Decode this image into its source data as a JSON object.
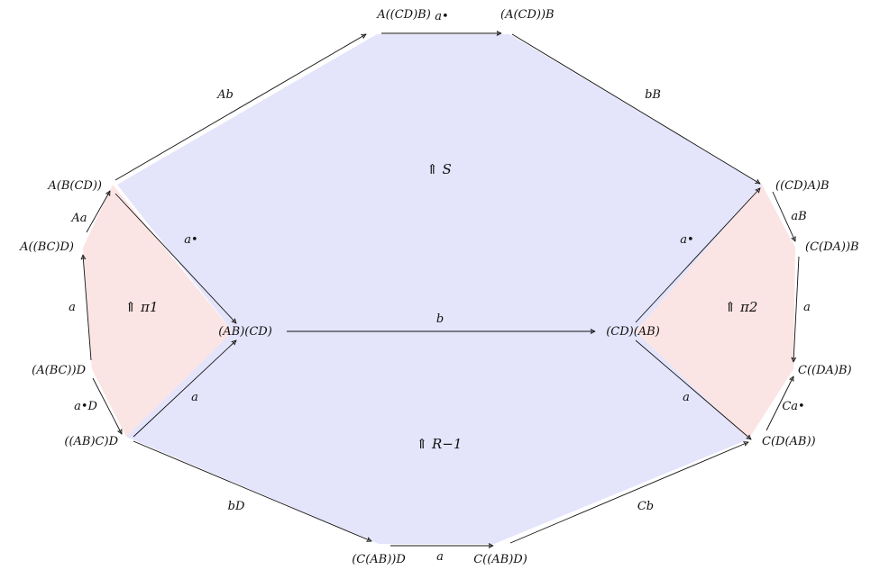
{
  "colors": {
    "blue_region": "#e4e4fb",
    "pink_region": "#fbe4e4",
    "ink": "#111111"
  },
  "objects": {
    "top_left": "A((CD)B)",
    "top_right": "(A(CD))B",
    "left_upper": "A(B(CD))",
    "right_upper": "((CD)A)B",
    "left_mid": "A((BC)D)",
    "right_mid": "(C(DA))B",
    "center_left": "(AB)(CD)",
    "center_right": "(CD)(AB)",
    "left_lower": "(A(BC))D",
    "right_lower": "C((DA)B)",
    "left_bottom": "((AB)C)D",
    "right_bottom": "C(D(AB))",
    "bottom_left": "(C(AB))D",
    "bottom_right": "C((AB)D)"
  },
  "morphisms": {
    "top": "a•",
    "upper_left": "Ab",
    "upper_right": "bB",
    "left_1": "Aa",
    "left_2": "a",
    "left_3": "a•D",
    "inner_left_up": "a•",
    "inner_left_down": "a",
    "center": "b",
    "inner_right_up": "a•",
    "inner_right_down": "a",
    "right_1": "aB",
    "right_2": "a",
    "right_3": "Ca•",
    "lower_left": "bD",
    "lower_right": "Cb",
    "bottom": "a"
  },
  "cells": {
    "top": "⇑ S",
    "left": "⇑ π1",
    "right": "⇑ π2",
    "bottom": "⇑ R−1"
  }
}
